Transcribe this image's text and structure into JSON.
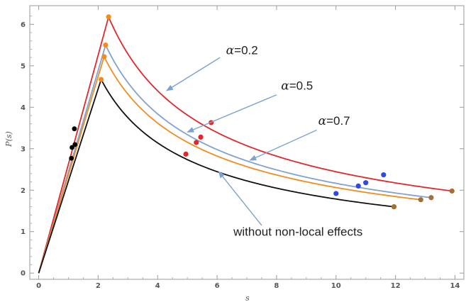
{
  "chart_data": {
    "type": "line",
    "title": "",
    "xlabel": "s",
    "ylabel": "P(s)",
    "xlim": [
      -0.3,
      14.3
    ],
    "ylim": [
      -0.15,
      6.45
    ],
    "xticks": [
      0,
      2,
      4,
      6,
      8,
      10,
      12,
      14
    ],
    "yticks": [
      0,
      1,
      2,
      3,
      4,
      5,
      6
    ],
    "grid": false,
    "frame": true,
    "series": [
      {
        "key": "a02",
        "color": "#e4262a",
        "peak": [
          2.35,
          6.18
        ],
        "end": [
          13.9,
          1.98
        ],
        "points": [
          {
            "x": 2.35,
            "y": 6.18,
            "color": "#f28c1e"
          },
          {
            "x": 5.8,
            "y": 3.63,
            "color": "#e4262a"
          },
          {
            "x": 11.6,
            "y": 2.37,
            "color": "#2f4ae0"
          },
          {
            "x": 13.9,
            "y": 1.98,
            "color": "#a0703a"
          }
        ]
      },
      {
        "key": "a05",
        "color": "#7fa2d2",
        "peak": [
          2.25,
          5.5
        ],
        "end": [
          13.2,
          1.82
        ],
        "points": [
          {
            "x": 2.25,
            "y": 5.5,
            "color": "#f28c1e"
          },
          {
            "x": 5.45,
            "y": 3.28,
            "color": "#e4262a"
          },
          {
            "x": 11.0,
            "y": 2.18,
            "color": "#2f4ae0"
          },
          {
            "x": 13.2,
            "y": 1.82,
            "color": "#a0703a"
          }
        ]
      },
      {
        "key": "a07",
        "color": "#f28c1e",
        "peak": [
          2.2,
          5.22
        ],
        "end": [
          12.85,
          1.77
        ],
        "points": [
          {
            "x": 2.2,
            "y": 5.22,
            "color": "#f28c1e"
          },
          {
            "x": 5.3,
            "y": 3.15,
            "color": "#e4262a"
          },
          {
            "x": 10.75,
            "y": 2.1,
            "color": "#2f4ae0"
          },
          {
            "x": 12.85,
            "y": 1.77,
            "color": "#a0703a"
          }
        ]
      },
      {
        "key": "local",
        "color": "#111111",
        "peak": [
          2.1,
          4.67
        ],
        "end": [
          11.95,
          1.6
        ],
        "points": [
          {
            "x": 2.1,
            "y": 4.67,
            "color": "#f28c1e"
          },
          {
            "x": 4.95,
            "y": 2.87,
            "color": "#e4262a"
          },
          {
            "x": 10.0,
            "y": 1.92,
            "color": "#2f4ae0"
          },
          {
            "x": 11.95,
            "y": 1.6,
            "color": "#a0703a"
          }
        ]
      }
    ],
    "rise_markers": [
      {
        "x": 1.2,
        "y": 3.48,
        "color": "#000000"
      },
      {
        "x": 1.22,
        "y": 3.1,
        "color": "#000000"
      },
      {
        "x": 1.12,
        "y": 3.03,
        "color": "#000000"
      },
      {
        "x": 1.1,
        "y": 2.77,
        "color": "#000000"
      }
    ],
    "annotations": [
      {
        "key": "a02",
        "alpha": "α",
        "text": "=0.2",
        "label_x": 6.3,
        "label_y": 5.28,
        "arrow_from": [
          6.1,
          5.2
        ],
        "arrow_to": [
          4.3,
          4.4
        ]
      },
      {
        "key": "a05",
        "alpha": "α",
        "text": "=0.5",
        "label_x": 8.15,
        "label_y": 4.42,
        "arrow_from": [
          8.0,
          4.3
        ],
        "arrow_to": [
          5.0,
          3.4
        ]
      },
      {
        "key": "a07",
        "alpha": "α",
        "text": "=0.7",
        "label_x": 9.4,
        "label_y": 3.58,
        "arrow_from": [
          9.35,
          3.45
        ],
        "arrow_to": [
          7.1,
          2.72
        ]
      },
      {
        "key": "local",
        "alpha": "",
        "text": "without non-local effects",
        "label_x": 6.55,
        "label_y": 0.9,
        "arrow_from": [
          7.5,
          1.15
        ],
        "arrow_to": [
          6.05,
          2.45
        ]
      }
    ]
  }
}
